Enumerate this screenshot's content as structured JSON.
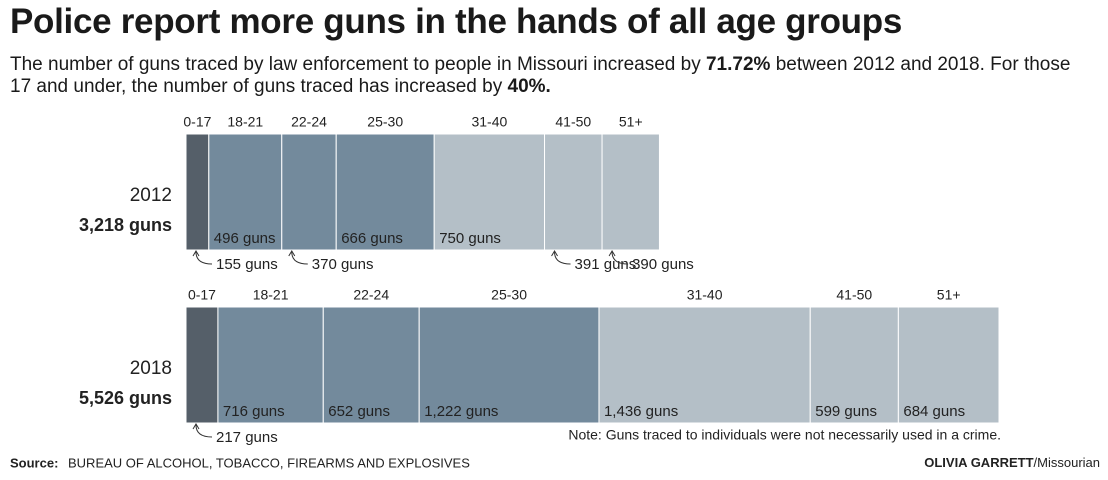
{
  "chart_data": {
    "type": "stacked-bar",
    "title": "Police report more guns in the hands of all age groups",
    "subtitle_parts": [
      "The number of guns traced by law enforcement to people in Missouri increased by ",
      "71.72%",
      " between 2012 and 2018. For those 17 and under, the number of guns traced has increased by ",
      "40%."
    ],
    "categories": [
      "0-17",
      "18-21",
      "22-24",
      "25-30",
      "31-40",
      "41-50",
      "51+"
    ],
    "colors": [
      "#555f69",
      "#738a9c",
      "#738a9c",
      "#738a9c",
      "#b4bfc7",
      "#b4bfc7",
      "#b4bfc7"
    ],
    "series": [
      {
        "name": "2012",
        "values": [
          155,
          496,
          370,
          666,
          750,
          391,
          390
        ],
        "value_labels": [
          "155 guns",
          "496 guns",
          "370 guns",
          "666 guns",
          "750 guns",
          "391 guns",
          "390 guns"
        ],
        "total": {
          "value": 3218,
          "label": "3,218 guns"
        }
      },
      {
        "name": "2018",
        "values": [
          217,
          716,
          652,
          1222,
          1436,
          599,
          684
        ],
        "value_labels": [
          "217 guns",
          "716 guns",
          "652 guns",
          "1,222 guns",
          "1,436 guns",
          "599 guns",
          "684 guns"
        ],
        "total": {
          "value": 5526,
          "label": "5,526 guns"
        }
      }
    ],
    "note": "Note: Guns traced to individuals were not necessarily used in a crime.",
    "source_label": "Source:",
    "source": "BUREAU OF ALCOHOL, TOBACCO, FIREARMS AND EXPLOSIVES",
    "credit_name": "OLIVIA GARRETT",
    "credit_org": "/Missourian"
  }
}
